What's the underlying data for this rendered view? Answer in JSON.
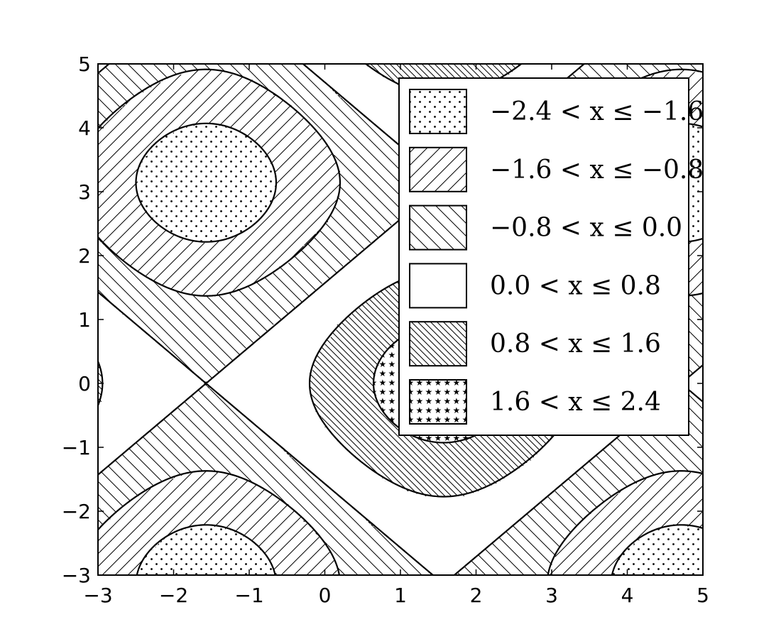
{
  "chart_data": {
    "type": "contourf",
    "title": "",
    "xlabel": "",
    "ylabel": "",
    "xlim": [
      -3,
      5
    ],
    "ylim": [
      -3,
      5
    ],
    "x_ticks": [
      "−3",
      "−2",
      "−1",
      "0",
      "1",
      "2",
      "3",
      "4",
      "5"
    ],
    "y_ticks": [
      "5",
      "4",
      "3",
      "2",
      "1",
      "0",
      "−1",
      "−2",
      "−3"
    ],
    "x_tick_values": [
      -3,
      -2,
      -1,
      0,
      1,
      2,
      3,
      4,
      5
    ],
    "y_tick_values": [
      5,
      4,
      3,
      2,
      1,
      0,
      -1,
      -2,
      -3
    ],
    "function": "sin(x) + cos(y)",
    "levels": [
      -2.4,
      -1.6,
      -0.8,
      0.0,
      0.8,
      1.6,
      2.4
    ],
    "legend_position": "upper right",
    "legend": [
      {
        "label": "−2.4 < x ≤ −1.6",
        "hatch": "dots"
      },
      {
        "label": "−1.6 < x ≤ −0.8",
        "hatch": "forward-diagonal"
      },
      {
        "label": "−0.8 < x ≤ 0.0",
        "hatch": "back-diagonal"
      },
      {
        "label": "0.0 < x ≤ 0.8",
        "hatch": "none"
      },
      {
        "label": "0.8 < x ≤ 1.6",
        "hatch": "dense-back-diagonal"
      },
      {
        "label": "1.6 < x ≤ 2.4",
        "hatch": "stars"
      }
    ]
  }
}
